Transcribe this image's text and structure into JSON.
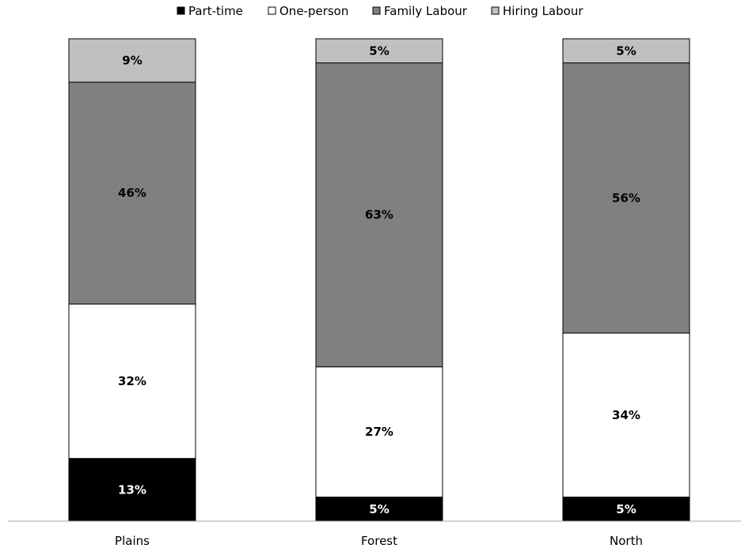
{
  "chart_data": {
    "type": "bar",
    "stacked": true,
    "normalized_percent": true,
    "categories": [
      "Plains",
      "Forest",
      "North"
    ],
    "series": [
      {
        "name": "Part-time",
        "color": "#000000",
        "label_color": "#ffffff",
        "values": [
          13,
          5,
          5
        ],
        "labels": [
          "13%",
          "5%",
          "5%"
        ]
      },
      {
        "name": "One-person",
        "color": "#ffffff",
        "label_color": "#000000",
        "values": [
          32,
          27,
          34
        ],
        "labels": [
          "32%",
          "27%",
          "34%"
        ]
      },
      {
        "name": "Family Labour",
        "color": "#808080",
        "label_color": "#000000",
        "values": [
          46,
          63,
          56
        ],
        "labels": [
          "46%",
          "63%",
          "56%"
        ]
      },
      {
        "name": "Hiring Labour",
        "color": "#c0c0c0",
        "label_color": "#000000",
        "values": [
          9,
          5,
          5
        ],
        "labels": [
          "9%",
          "5%",
          "5%"
        ]
      }
    ],
    "ylim": [
      0,
      100
    ],
    "grid": false,
    "legend_position": "top",
    "title": "",
    "xlabel": "",
    "ylabel": ""
  }
}
